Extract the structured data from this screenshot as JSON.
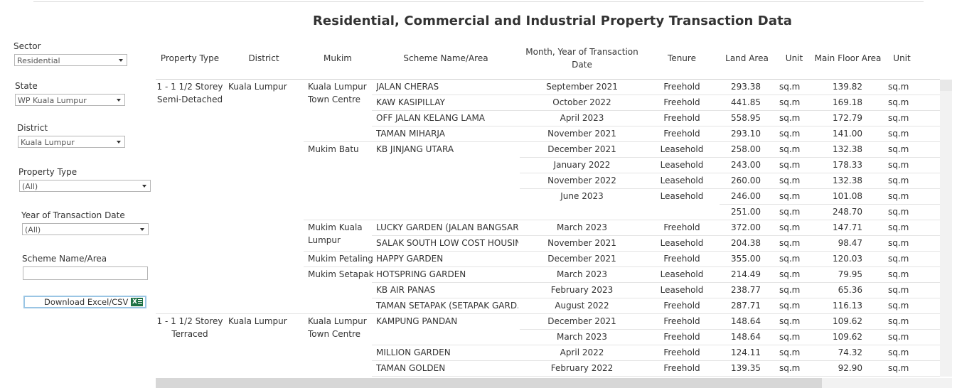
{
  "title": "Residential, Commercial and Industrial Property Transaction Data",
  "filters": {
    "sector": {
      "label": "Sector",
      "value": "Residential"
    },
    "state": {
      "label": "State",
      "value": "WP Kuala Lumpur"
    },
    "district": {
      "label": "District",
      "value": "Kuala Lumpur"
    },
    "property_type": {
      "label": "Property Type",
      "value": "(All)"
    },
    "year": {
      "label": "Year of Transaction Date",
      "value": "(All)"
    },
    "scheme": {
      "label": "Scheme Name/Area",
      "value": ""
    },
    "download_label": "Download Excel/CSV",
    "download_icon": "excel-icon"
  },
  "table": {
    "headers": {
      "property_type": "Property Type",
      "district": "District",
      "mukim": "Mukim",
      "scheme": "Scheme Name/Area",
      "date": "Month, Year of Transaction Date",
      "tenure": "Tenure",
      "land_area": "Land Area",
      "unit1": "Unit",
      "floor_area": "Main Floor Area",
      "unit2": "Unit"
    },
    "groups": [
      {
        "property_type": "1 - 1 1/2 Storey Semi-Detached",
        "district": "Kuala Lumpur"
      },
      {
        "property_type": "1 - 1 1/2 Storey Terraced",
        "district": "Kuala Lumpur"
      }
    ],
    "mukims": [
      "Kuala Lumpur Town Centre",
      "Mukim Batu",
      "Mukim Kuala Lumpur",
      "Mukim Petaling",
      "Mukim Setapak",
      "Kuala Lumpur Town Centre"
    ],
    "rows": [
      {
        "scheme": "JALAN CHERAS",
        "date": "September 2021",
        "tenure": "Freehold",
        "land": "293.38",
        "u1": "sq.m",
        "floor": "139.82",
        "u2": "sq.m"
      },
      {
        "scheme": "KAW KASIPILLAY",
        "date": "October 2022",
        "tenure": "Freehold",
        "land": "441.85",
        "u1": "sq.m",
        "floor": "169.18",
        "u2": "sq.m"
      },
      {
        "scheme": "OFF JALAN KELANG LAMA",
        "date": "April 2023",
        "tenure": "Freehold",
        "land": "558.95",
        "u1": "sq.m",
        "floor": "172.79",
        "u2": "sq.m"
      },
      {
        "scheme": "TAMAN MIHARJA",
        "date": "November 2021",
        "tenure": "Freehold",
        "land": "293.10",
        "u1": "sq.m",
        "floor": "141.00",
        "u2": "sq.m"
      },
      {
        "scheme": "KB JINJANG UTARA",
        "date": "December 2021",
        "tenure": "Leasehold",
        "land": "258.00",
        "u1": "sq.m",
        "floor": "132.38",
        "u2": "sq.m"
      },
      {
        "scheme": "",
        "date": "January 2022",
        "tenure": "Leasehold",
        "land": "243.00",
        "u1": "sq.m",
        "floor": "178.33",
        "u2": "sq.m"
      },
      {
        "scheme": "",
        "date": "November 2022",
        "tenure": "Leasehold",
        "land": "260.00",
        "u1": "sq.m",
        "floor": "132.38",
        "u2": "sq.m"
      },
      {
        "scheme": "",
        "date": "June 2023",
        "tenure": "Leasehold",
        "land": "246.00",
        "u1": "sq.m",
        "floor": "101.08",
        "u2": "sq.m"
      },
      {
        "scheme": "",
        "date": "",
        "tenure": "",
        "land": "251.00",
        "u1": "sq.m",
        "floor": "248.70",
        "u2": "sq.m"
      },
      {
        "scheme": "LUCKY GARDEN (JALAN BANGSAR)",
        "date": "March 2023",
        "tenure": "Freehold",
        "land": "372.00",
        "u1": "sq.m",
        "floor": "147.71",
        "u2": "sq.m"
      },
      {
        "scheme": "SALAK SOUTH LOW COST HOUSING",
        "date": "November 2021",
        "tenure": "Leasehold",
        "land": "204.38",
        "u1": "sq.m",
        "floor": "98.47",
        "u2": "sq.m"
      },
      {
        "scheme": "HAPPY GARDEN",
        "date": "December 2021",
        "tenure": "Freehold",
        "land": "355.00",
        "u1": "sq.m",
        "floor": "120.03",
        "u2": "sq.m"
      },
      {
        "scheme": "HOTSPRING GARDEN",
        "date": "March 2023",
        "tenure": "Leasehold",
        "land": "214.49",
        "u1": "sq.m",
        "floor": "79.95",
        "u2": "sq.m"
      },
      {
        "scheme": "KB AIR PANAS",
        "date": "February 2023",
        "tenure": "Leasehold",
        "land": "238.77",
        "u1": "sq.m",
        "floor": "65.36",
        "u2": "sq.m"
      },
      {
        "scheme": "TAMAN SETAPAK (SETAPAK GARD..",
        "date": "August 2022",
        "tenure": "Freehold",
        "land": "287.71",
        "u1": "sq.m",
        "floor": "116.13",
        "u2": "sq.m"
      },
      {
        "scheme": "KAMPUNG PANDAN",
        "date": "December 2021",
        "tenure": "Freehold",
        "land": "148.64",
        "u1": "sq.m",
        "floor": "109.62",
        "u2": "sq.m"
      },
      {
        "scheme": "",
        "date": "March 2023",
        "tenure": "Freehold",
        "land": "148.64",
        "u1": "sq.m",
        "floor": "109.62",
        "u2": "sq.m"
      },
      {
        "scheme": "MILLION GARDEN",
        "date": "April 2022",
        "tenure": "Freehold",
        "land": "124.11",
        "u1": "sq.m",
        "floor": "74.32",
        "u2": "sq.m"
      },
      {
        "scheme": "TAMAN GOLDEN",
        "date": "February 2022",
        "tenure": "Freehold",
        "land": "139.35",
        "u1": "sq.m",
        "floor": "92.90",
        "u2": "sq.m"
      }
    ]
  }
}
